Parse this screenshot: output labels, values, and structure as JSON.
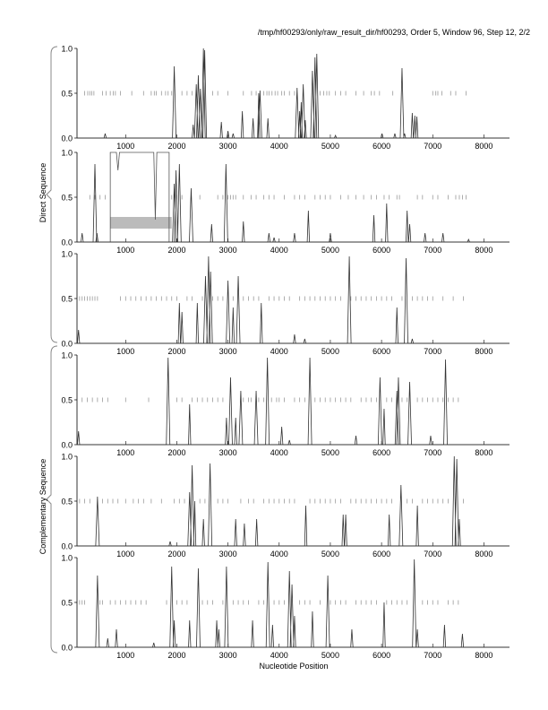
{
  "header": {
    "title": "/tmp/hf00293/only/raw_result_dir/hf00293, Order 5, Window 96, Step 12, 2/2"
  },
  "groups": {
    "direct": "Direct Sequence",
    "complementary": "Complementary Sequence"
  },
  "chart_data": {
    "type": "line",
    "xlabel": "Nucleotide Position",
    "xlim": [
      50,
      8500
    ],
    "ylim": [
      0,
      1
    ],
    "xticks": [
      1000,
      2000,
      3000,
      4000,
      5000,
      6000,
      7000,
      8000
    ],
    "xtick_labels": [
      "1000",
      "2000",
      "3000",
      "4000",
      "5000",
      "6000",
      "7000",
      "8000"
    ],
    "ytick_labels": [
      "0.0",
      "0.5",
      "1.0"
    ],
    "panels": [
      {
        "name": "direct-frame-1",
        "peaks": [
          [
            600,
            0.05
          ],
          [
            1950,
            0.8
          ],
          [
            2320,
            0.15
          ],
          [
            2380,
            0.6
          ],
          [
            2420,
            0.7
          ],
          [
            2460,
            0.55
          ],
          [
            2520,
            1.0
          ],
          [
            2545,
            0.98
          ],
          [
            2870,
            0.18
          ],
          [
            3000,
            0.08
          ],
          [
            3100,
            0.05
          ],
          [
            3280,
            0.3
          ],
          [
            3490,
            0.22
          ],
          [
            3600,
            0.5
          ],
          [
            3625,
            0.53
          ],
          [
            3780,
            0.22
          ],
          [
            4350,
            0.56
          ],
          [
            4400,
            0.3
          ],
          [
            4430,
            0.4
          ],
          [
            4470,
            0.6
          ],
          [
            4510,
            0.2
          ],
          [
            4650,
            0.75
          ],
          [
            4700,
            0.9
          ],
          [
            4735,
            0.94
          ],
          [
            5100,
            0.03
          ],
          [
            6010,
            0.05
          ],
          [
            6260,
            0.05
          ],
          [
            6400,
            0.78
          ],
          [
            6450,
            0.05
          ],
          [
            6600,
            0.28
          ],
          [
            6650,
            0.25
          ],
          [
            6690,
            0.24
          ]
        ],
        "genes": [
          200,
          260,
          300,
          340,
          380,
          550,
          620,
          700,
          760,
          800,
          900,
          1120,
          1350,
          1500,
          1560,
          1600,
          1700,
          1780,
          1830,
          1900,
          2100,
          2200,
          2300,
          2700,
          2800,
          3000,
          3300,
          3460,
          3550,
          3700,
          3760,
          3800,
          3860,
          3920,
          3970,
          4050,
          4100,
          4200,
          4300,
          4800,
          4870,
          4930,
          4980,
          5100,
          5200,
          5300,
          5500,
          5650,
          5800,
          5860,
          5960,
          6220,
          7000,
          7060,
          7100,
          7180,
          7350,
          7450,
          7650
        ]
      },
      {
        "name": "direct-frame-2",
        "peaks": [
          [
            150,
            0.1
          ],
          [
            400,
            0.87
          ],
          [
            440,
            0.1
          ],
          [
            1950,
            0.65
          ],
          [
            1985,
            0.8
          ],
          [
            2050,
            0.87
          ],
          [
            2280,
            0.6
          ],
          [
            2680,
            0.2
          ],
          [
            2960,
            0.87
          ],
          [
            3300,
            0.23
          ],
          [
            3800,
            0.1
          ],
          [
            3900,
            0.05
          ],
          [
            4300,
            0.1
          ],
          [
            4570,
            0.35
          ],
          [
            5000,
            0.1
          ],
          [
            5850,
            0.3
          ],
          [
            6100,
            0.43
          ],
          [
            6500,
            0.35
          ],
          [
            6550,
            0.2
          ],
          [
            6850,
            0.1
          ],
          [
            7200,
            0.1
          ],
          [
            7700,
            0.03
          ]
        ],
        "orf": {
          "start": 700,
          "end": 1850,
          "dips": [
            [
              850,
              0.8
            ],
            [
              1580,
              0.25
            ]
          ],
          "band": [
            0.15,
            0.28
          ]
        },
        "genes": [
          300,
          400,
          500,
          600,
          1900,
          2000,
          2100,
          2450,
          2800,
          2900,
          3000,
          3050,
          3100,
          3150,
          3300,
          3450,
          3550,
          3700,
          3800,
          3900,
          4100,
          4300,
          4400,
          4500,
          4700,
          4800,
          4900,
          5000,
          5200,
          5350,
          5500,
          5650,
          5800,
          5900,
          6050,
          6150,
          6300,
          6350,
          6700,
          6800,
          7000,
          7100,
          7300,
          7450,
          7520,
          7580,
          7650
        ]
      },
      {
        "name": "direct-frame-3",
        "peaks": [
          [
            80,
            0.15
          ],
          [
            2050,
            0.45
          ],
          [
            2100,
            0.35
          ],
          [
            2400,
            0.45
          ],
          [
            2560,
            0.75
          ],
          [
            2620,
            0.97
          ],
          [
            2660,
            0.8
          ],
          [
            3000,
            0.7
          ],
          [
            3100,
            0.4
          ],
          [
            3200,
            0.75
          ],
          [
            3650,
            0.45
          ],
          [
            4300,
            0.1
          ],
          [
            4500,
            0.05
          ],
          [
            5370,
            0.97
          ],
          [
            6300,
            0.4
          ],
          [
            6480,
            0.95
          ],
          [
            6600,
            0.05
          ]
        ],
        "genes": [
          100,
          150,
          200,
          250,
          300,
          350,
          400,
          450,
          900,
          1000,
          1100,
          1200,
          1300,
          1400,
          1500,
          1600,
          1700,
          1800,
          1900,
          2000,
          2200,
          2300,
          2500,
          2700,
          2800,
          2900,
          3100,
          3300,
          3400,
          3500,
          3600,
          3800,
          3900,
          4000,
          4100,
          4200,
          4400,
          4500,
          4600,
          4700,
          4800,
          4900,
          5000,
          5100,
          5200,
          5400,
          5500,
          5600,
          5700,
          5800,
          5900,
          6000,
          6100,
          6200,
          6400,
          6600,
          6700,
          6800,
          6900,
          7000,
          7200,
          7400,
          7600
        ]
      },
      {
        "name": "complementary-frame-1",
        "peaks": [
          [
            80,
            0.15
          ],
          [
            1830,
            0.97
          ],
          [
            2250,
            0.45
          ],
          [
            2970,
            0.3
          ],
          [
            3050,
            0.75
          ],
          [
            3150,
            0.3
          ],
          [
            3250,
            0.6
          ],
          [
            3550,
            0.6
          ],
          [
            3770,
            0.97
          ],
          [
            4050,
            0.2
          ],
          [
            4200,
            0.05
          ],
          [
            4600,
            0.97
          ],
          [
            5500,
            0.1
          ],
          [
            5970,
            0.75
          ],
          [
            6050,
            0.4
          ],
          [
            6300,
            0.6
          ],
          [
            6330,
            0.75
          ],
          [
            6550,
            0.7
          ],
          [
            6960,
            0.1
          ],
          [
            7250,
            0.95
          ]
        ],
        "genes": [
          150,
          250,
          350,
          450,
          550,
          650,
          1000,
          1450,
          2000,
          2100,
          2300,
          2400,
          2500,
          2600,
          2700,
          2800,
          2900,
          3300,
          3400,
          3450,
          3600,
          3700,
          3850,
          3950,
          4000,
          4100,
          4300,
          4400,
          4500,
          4700,
          4800,
          4900,
          5000,
          5100,
          5200,
          5300,
          5400,
          5600,
          5700,
          5800,
          5900,
          6100,
          6200,
          6400,
          6500,
          6700,
          6800,
          6900,
          7000,
          7100,
          7200,
          7300,
          7400,
          7500
        ]
      },
      {
        "name": "complementary-frame-2",
        "peaks": [
          [
            450,
            0.55
          ],
          [
            1870,
            0.05
          ],
          [
            2250,
            0.6
          ],
          [
            2300,
            0.9
          ],
          [
            2350,
            0.5
          ],
          [
            2520,
            0.3
          ],
          [
            2650,
            0.92
          ],
          [
            3150,
            0.3
          ],
          [
            3320,
            0.25
          ],
          [
            3560,
            0.3
          ],
          [
            4520,
            0.45
          ],
          [
            5250,
            0.35
          ],
          [
            5300,
            0.35
          ],
          [
            6150,
            0.35
          ],
          [
            6380,
            0.68
          ],
          [
            6700,
            0.45
          ],
          [
            7420,
            1.0
          ],
          [
            7470,
            0.97
          ],
          [
            7520,
            0.3
          ]
        ],
        "genes": [
          100,
          200,
          300,
          550,
          650,
          750,
          850,
          1000,
          1150,
          1250,
          1350,
          1500,
          1700,
          1950,
          2050,
          2150,
          2450,
          2550,
          2800,
          2900,
          3000,
          3250,
          3400,
          3500,
          3700,
          3800,
          3900,
          4000,
          4100,
          4200,
          4300,
          4600,
          4700,
          4800,
          4900,
          5000,
          5100,
          5200,
          5400,
          5500,
          5600,
          5700,
          5800,
          5900,
          6000,
          6100,
          6200,
          6500,
          6600,
          6800,
          6900,
          7000,
          7100,
          7200,
          7300,
          7600
        ]
      },
      {
        "name": "complementary-frame-3",
        "peaks": [
          [
            450,
            0.8
          ],
          [
            650,
            0.1
          ],
          [
            820,
            0.2
          ],
          [
            1550,
            0.05
          ],
          [
            1900,
            0.9
          ],
          [
            1950,
            0.3
          ],
          [
            2250,
            0.3
          ],
          [
            2420,
            0.88
          ],
          [
            2780,
            0.3
          ],
          [
            2820,
            0.2
          ],
          [
            2970,
            0.9
          ],
          [
            3480,
            0.3
          ],
          [
            3780,
            0.95
          ],
          [
            3870,
            0.25
          ],
          [
            4200,
            0.85
          ],
          [
            4250,
            0.7
          ],
          [
            4300,
            0.35
          ],
          [
            4650,
            0.4
          ],
          [
            4950,
            0.8
          ],
          [
            5420,
            0.2
          ],
          [
            6050,
            0.5
          ],
          [
            6640,
            0.98
          ],
          [
            6700,
            0.2
          ],
          [
            7230,
            0.25
          ],
          [
            7580,
            0.15
          ]
        ],
        "genes": [
          100,
          150,
          200,
          500,
          550,
          700,
          800,
          900,
          1000,
          1100,
          1200,
          1300,
          1400,
          1800,
          2000,
          2100,
          2200,
          2500,
          2600,
          2700,
          2900,
          3100,
          3200,
          3300,
          3400,
          3600,
          3700,
          3900,
          4000,
          4100,
          4400,
          4500,
          4600,
          4800,
          5000,
          5100,
          5200,
          5300,
          5500,
          5600,
          5700,
          5800,
          5900,
          6100,
          6200,
          6300,
          6400,
          6500,
          6800,
          6900,
          7000,
          7100,
          7300,
          7400,
          7500
        ]
      }
    ]
  }
}
